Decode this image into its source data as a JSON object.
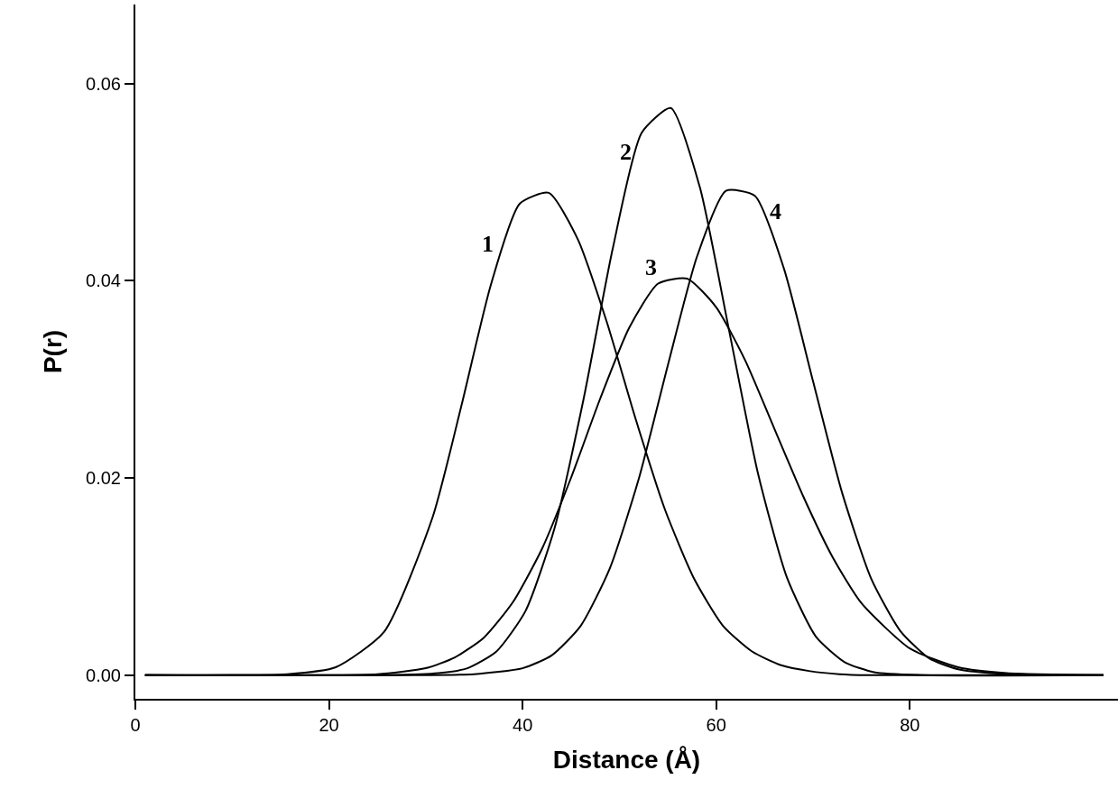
{
  "chart_data": {
    "type": "line",
    "xlabel": "Distance (Å)",
    "ylabel": "P(r)",
    "xlim": [
      0,
      101.5
    ],
    "ylim": [
      -0.0024,
      0.068
    ],
    "xticks": [
      0,
      20,
      40,
      60,
      80
    ],
    "yticks": [
      {
        "value": 0,
        "label": "0.00"
      },
      {
        "value": 0.02,
        "label": "0.02"
      },
      {
        "value": 0.04,
        "label": "0.04"
      },
      {
        "value": 0.06,
        "label": "0.06"
      }
    ],
    "legend": false,
    "marker": "none",
    "line_style": "solid",
    "series": [
      {
        "name": "1",
        "color": "#000000",
        "x": [
          1,
          15.7,
          20.7,
          25.7,
          30.7,
          33.7,
          36.7,
          39.7,
          42.7,
          45.7,
          48.7,
          51.7,
          54.7,
          57.7,
          60.7,
          63.7,
          66.7,
          69.7,
          72.7,
          75.7,
          100
        ],
        "values": [
          0,
          0.0001,
          0.0008,
          0.0044,
          0.016,
          0.0274,
          0.0395,
          0.0478,
          0.0489,
          0.0442,
          0.0358,
          0.0259,
          0.0168,
          0.0098,
          0.005,
          0.0024,
          0.001,
          0.0004,
          0.0001,
          0,
          0
        ]
      },
      {
        "name": "2",
        "color": "#000000",
        "x": [
          1,
          26.3,
          31.3,
          34.3,
          37.3,
          40.3,
          43.3,
          46.3,
          49.3,
          52.3,
          55.3,
          58.3,
          61.3,
          64.3,
          67.3,
          70.3,
          73.3,
          76.3,
          81.3,
          100
        ],
        "values": [
          0,
          0,
          0.0002,
          0.0007,
          0.0024,
          0.0065,
          0.0149,
          0.028,
          0.0432,
          0.055,
          0.0575,
          0.0495,
          0.0351,
          0.0205,
          0.0099,
          0.0039,
          0.0013,
          0.0003,
          0,
          0
        ]
      },
      {
        "name": "3",
        "color": "#000000",
        "x": [
          1,
          20,
          25,
          30,
          33,
          36,
          39,
          42,
          45,
          48,
          51,
          54,
          57,
          60,
          63,
          66,
          69,
          72,
          75,
          80,
          85,
          90,
          100
        ],
        "values": [
          0,
          0,
          0.0001,
          0.0007,
          0.0018,
          0.0038,
          0.0074,
          0.0128,
          0.02,
          0.028,
          0.0352,
          0.0397,
          0.0402,
          0.0373,
          0.0319,
          0.025,
          0.0181,
          0.012,
          0.0073,
          0.0027,
          0.0008,
          0.0002,
          0
        ]
      },
      {
        "name": "4",
        "color": "#000000",
        "x": [
          1,
          30,
          35,
          40,
          43,
          46,
          49,
          52,
          55,
          58,
          61,
          64,
          67,
          70,
          73,
          76,
          79,
          82,
          85,
          90,
          95,
          100
        ],
        "values": [
          0,
          0,
          0.0001,
          0.0007,
          0.002,
          0.005,
          0.0108,
          0.0199,
          0.0314,
          0.0424,
          0.0491,
          0.0486,
          0.0412,
          0.0298,
          0.0185,
          0.0098,
          0.0045,
          0.0017,
          0.0006,
          0.0001,
          0,
          0
        ]
      }
    ]
  }
}
